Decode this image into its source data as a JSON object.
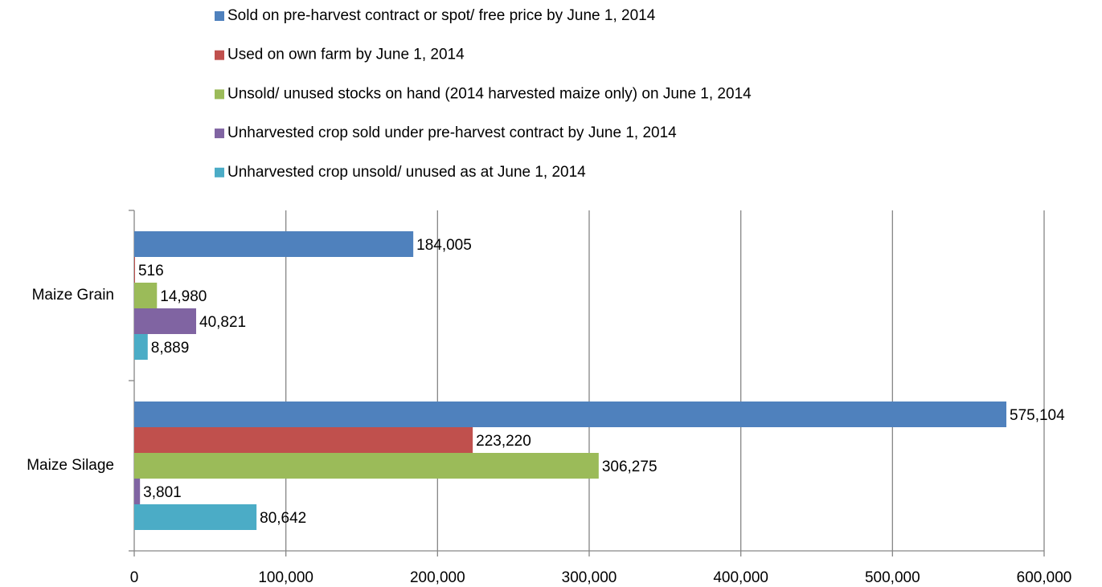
{
  "chart_data": {
    "type": "bar",
    "orientation": "horizontal",
    "categories": [
      "Maize Grain",
      "Maize Silage"
    ],
    "series": [
      {
        "name": "Sold on pre-harvest contract or spot/ free price by June 1, 2014",
        "color": "#4f81bd",
        "values": [
          184005,
          575104
        ],
        "value_labels": [
          "184,005",
          "575,104"
        ]
      },
      {
        "name": "Used on own farm by June 1, 2014",
        "color": "#c0504d",
        "values": [
          516,
          223220
        ],
        "value_labels": [
          "516",
          "223,220"
        ]
      },
      {
        "name": "Unsold/ unused stocks on hand (2014 harvested maize only) on June 1, 2014",
        "color": "#9bbb59",
        "values": [
          14980,
          306275
        ],
        "value_labels": [
          "14,980",
          "306,275"
        ]
      },
      {
        "name": "Unharvested crop sold under pre-harvest contract by June 1, 2014",
        "color": "#8064a2",
        "values": [
          40821,
          3801
        ],
        "value_labels": [
          "40,821",
          "3,801"
        ]
      },
      {
        "name": "Unharvested crop unsold/ unused as at June 1, 2014",
        "color": "#4bacc6",
        "values": [
          8889,
          80642
        ],
        "value_labels": [
          "8,889",
          "80,642"
        ]
      }
    ],
    "xlim": [
      0,
      600000
    ],
    "xticks": [
      0,
      {
        "value": 100000,
        "label": "100,000"
      },
      {
        "value": 200000,
        "label": "200,000"
      },
      {
        "value": 300000,
        "label": "300,000"
      },
      {
        "value": 400000,
        "label": "400,000"
      },
      {
        "value": 500000,
        "label": "500,000"
      },
      {
        "value": 600000,
        "label": "600,000"
      }
    ],
    "grid": true,
    "legend": "top"
  }
}
